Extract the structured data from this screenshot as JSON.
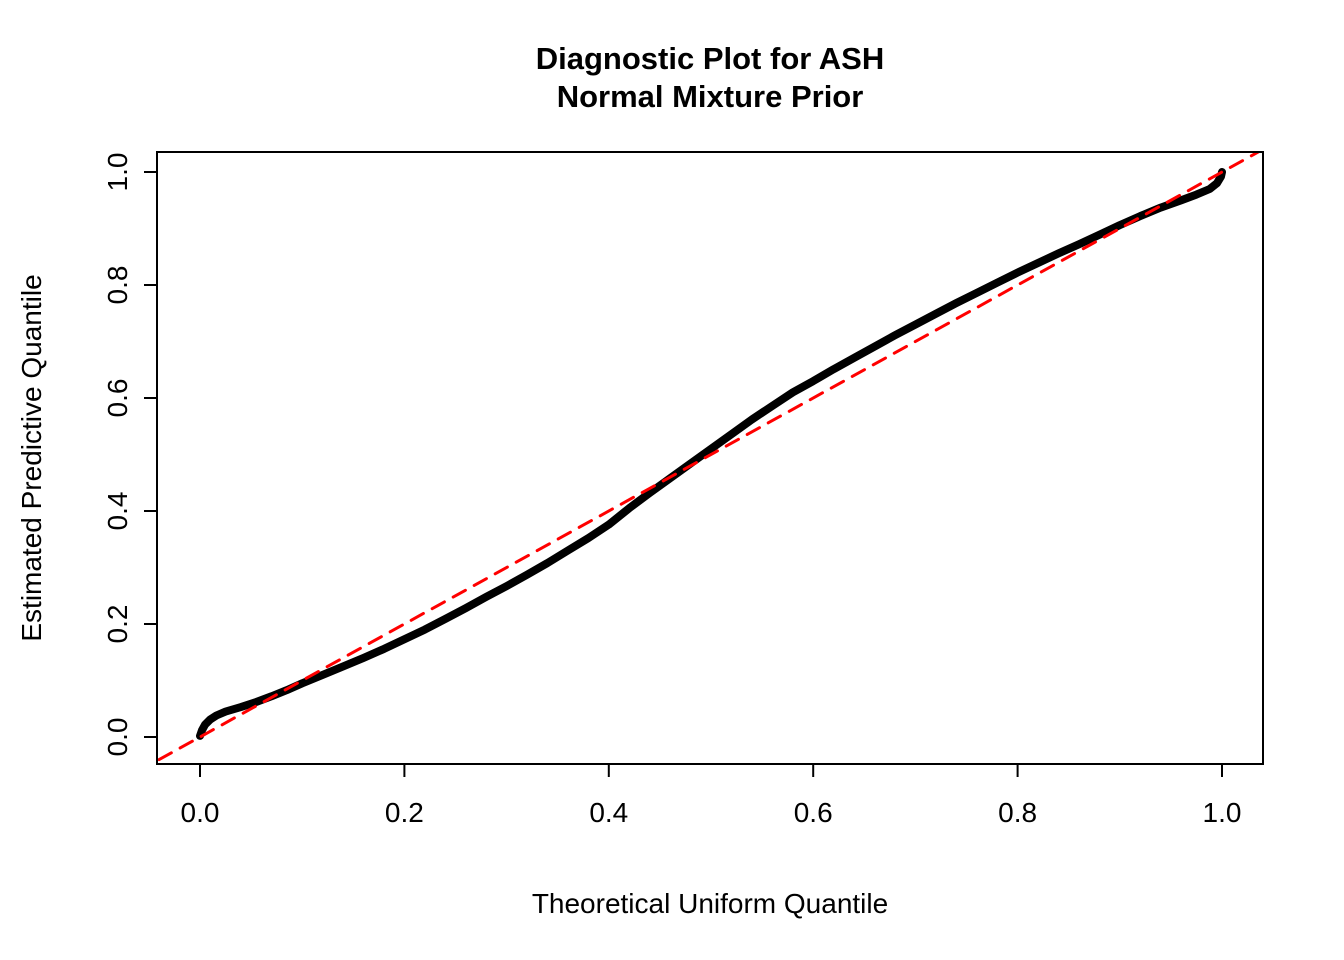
{
  "figure": {
    "background": "#ffffff"
  },
  "chart_data": {
    "type": "line",
    "title": "Diagnostic Plot for ASH\nNormal Mixture Prior",
    "xlabel": "Theoretical Uniform Quantile",
    "ylabel": "Estimated Predictive Quantile",
    "xlim": [
      -0.04,
      1.04
    ],
    "ylim": [
      -0.04,
      1.04
    ],
    "grid": false,
    "legend": null,
    "x_ticks": [
      0.0,
      0.2,
      0.4,
      0.6,
      0.8,
      1.0
    ],
    "x_tick_labels": [
      "0.0",
      "0.2",
      "0.4",
      "0.6",
      "0.8",
      "1.0"
    ],
    "y_ticks": [
      0.0,
      0.2,
      0.4,
      0.6,
      0.8,
      1.0
    ],
    "y_tick_labels": [
      "0.0",
      "0.2",
      "0.4",
      "0.6",
      "0.8",
      "1.0"
    ],
    "axis_color": "#000000",
    "series": [
      {
        "name": "estimated-predictive-quantiles",
        "type": "line",
        "color": "#000000",
        "stroke_width": 8,
        "dashed": false,
        "points": [
          [
            0.0,
            0.002
          ],
          [
            0.002,
            0.012
          ],
          [
            0.005,
            0.022
          ],
          [
            0.01,
            0.031
          ],
          [
            0.016,
            0.038
          ],
          [
            0.025,
            0.045
          ],
          [
            0.04,
            0.053
          ],
          [
            0.055,
            0.062
          ],
          [
            0.07,
            0.072
          ],
          [
            0.085,
            0.083
          ],
          [
            0.1,
            0.095
          ],
          [
            0.12,
            0.11
          ],
          [
            0.14,
            0.125
          ],
          [
            0.16,
            0.14
          ],
          [
            0.18,
            0.156
          ],
          [
            0.2,
            0.173
          ],
          [
            0.22,
            0.19
          ],
          [
            0.24,
            0.209
          ],
          [
            0.26,
            0.228
          ],
          [
            0.28,
            0.248
          ],
          [
            0.3,
            0.267
          ],
          [
            0.32,
            0.287
          ],
          [
            0.34,
            0.308
          ],
          [
            0.36,
            0.33
          ],
          [
            0.38,
            0.352
          ],
          [
            0.4,
            0.376
          ],
          [
            0.42,
            0.405
          ],
          [
            0.44,
            0.432
          ],
          [
            0.46,
            0.458
          ],
          [
            0.48,
            0.484
          ],
          [
            0.5,
            0.51
          ],
          [
            0.52,
            0.536
          ],
          [
            0.54,
            0.562
          ],
          [
            0.56,
            0.586
          ],
          [
            0.58,
            0.61
          ],
          [
            0.6,
            0.63
          ],
          [
            0.62,
            0.651
          ],
          [
            0.64,
            0.671
          ],
          [
            0.66,
            0.691
          ],
          [
            0.68,
            0.711
          ],
          [
            0.7,
            0.73
          ],
          [
            0.72,
            0.749
          ],
          [
            0.74,
            0.768
          ],
          [
            0.76,
            0.786
          ],
          [
            0.78,
            0.804
          ],
          [
            0.8,
            0.822
          ],
          [
            0.82,
            0.839
          ],
          [
            0.84,
            0.856
          ],
          [
            0.86,
            0.872
          ],
          [
            0.88,
            0.889
          ],
          [
            0.9,
            0.906
          ],
          [
            0.92,
            0.922
          ],
          [
            0.94,
            0.937
          ],
          [
            0.96,
            0.95
          ],
          [
            0.975,
            0.96
          ],
          [
            0.988,
            0.97
          ],
          [
            0.995,
            0.98
          ],
          [
            0.999,
            0.992
          ],
          [
            1.0,
            1.0
          ]
        ]
      },
      {
        "name": "identity-reference-line",
        "type": "line",
        "color": "#FF0000",
        "stroke_width": 3,
        "dashed": true,
        "dash_pattern": "14 10",
        "points": [
          [
            -0.04,
            -0.04
          ],
          [
            1.04,
            1.04
          ]
        ]
      }
    ]
  }
}
